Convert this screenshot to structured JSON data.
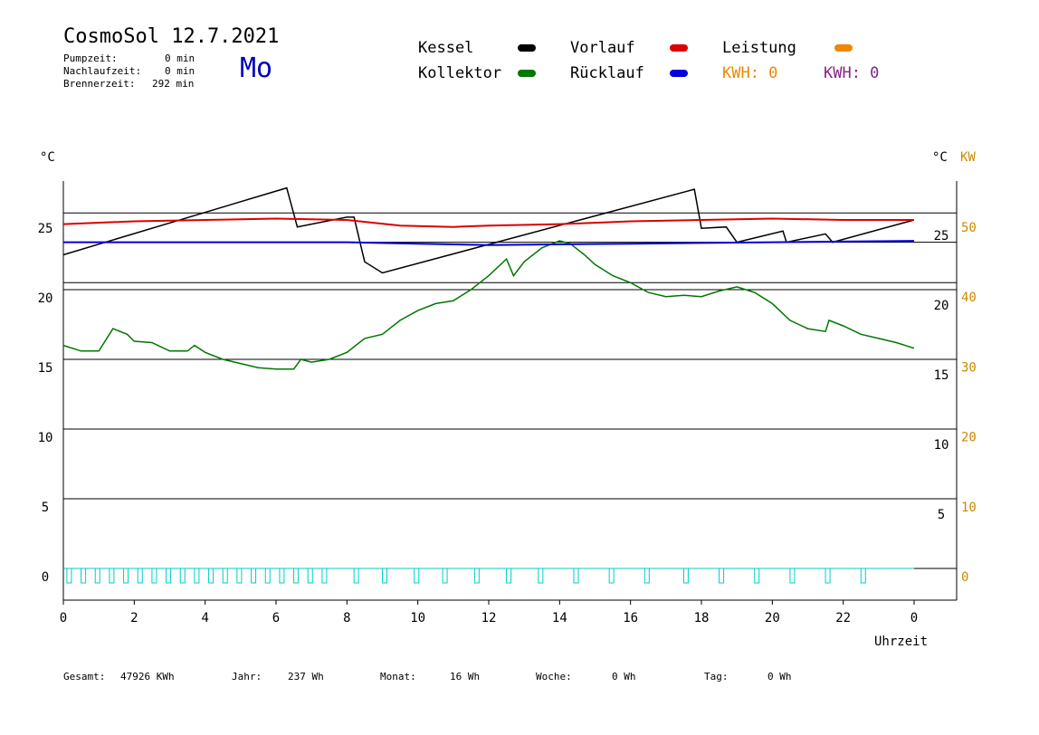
{
  "header": {
    "title": "CosmoSol 12.7.2021",
    "day": "Mo",
    "stats": [
      {
        "label": "Pumpzeit:",
        "value": "0 min"
      },
      {
        "label": "Nachlaufzeit:",
        "value": "0 min"
      },
      {
        "label": "Brennerzeit:",
        "value": "292 min"
      }
    ]
  },
  "legend": {
    "kessel": "Kessel",
    "kollektor": "Kollektor",
    "vorlauf": "Vorlauf",
    "ruecklauf": "Rücklauf",
    "leistung": "Leistung",
    "kwh1": "KWH: 0",
    "kwh2": "KWH: 0",
    "colors": {
      "kessel": "#000000",
      "kollektor": "#007700",
      "vorlauf": "#dd0000",
      "ruecklauf": "#0000dd",
      "leistung": "#ee8800",
      "kwh2": "#882288",
      "pump": "#00cccc"
    }
  },
  "axes": {
    "left_unit": "°C",
    "right_unit": "°C",
    "right_unit2": "KW",
    "xlabel": "Uhrzeit"
  },
  "footer": {
    "gesamt_label": "Gesamt:",
    "gesamt_value": "47926 KWh",
    "jahr_label": "Jahr:",
    "jahr_value": "237 Wh",
    "monat_label": "Monat:",
    "monat_value": "16 Wh",
    "woche_label": "Woche:",
    "woche_value": "0 Wh",
    "tag_label": "Tag:",
    "tag_value": "0 Wh"
  },
  "chart_data": {
    "type": "line",
    "xlabel": "Uhrzeit",
    "ylabel": "°C",
    "xlim": [
      0,
      24
    ],
    "ylim": [
      -2,
      28
    ],
    "y2lim": [
      0,
      55
    ],
    "grid": true,
    "x_ticks": [
      "0",
      "2",
      "4",
      "6",
      "8",
      "10",
      "12",
      "14",
      "16",
      "18",
      "20",
      "22",
      "0"
    ],
    "y_ticks_left": [
      "0",
      "5",
      "10",
      "15",
      "20",
      "25"
    ],
    "y_ticks_right": [
      "5",
      "10",
      "15",
      "20",
      "25"
    ],
    "y2_ticks": [
      "0",
      "10",
      "20",
      "30",
      "40",
      "50"
    ],
    "ref_lines": [
      25.5,
      23.4,
      20.5
    ],
    "series": [
      {
        "name": "Kessel",
        "key": "kessel",
        "points": [
          [
            0,
            22.5
          ],
          [
            6.3,
            27.3
          ],
          [
            6.6,
            24.5
          ],
          [
            8.0,
            25.2
          ],
          [
            8.2,
            25.2
          ],
          [
            8.5,
            22.0
          ],
          [
            9.0,
            21.2
          ],
          [
            17.8,
            27.2
          ],
          [
            18.0,
            24.4
          ],
          [
            18.7,
            24.5
          ],
          [
            19.0,
            23.4
          ],
          [
            20.3,
            24.2
          ],
          [
            20.4,
            23.4
          ],
          [
            21.5,
            24.0
          ],
          [
            21.7,
            23.4
          ],
          [
            24.0,
            25.0
          ]
        ]
      },
      {
        "name": "Kollektor",
        "key": "kollektor",
        "points": [
          [
            0,
            16.0
          ],
          [
            0.5,
            15.6
          ],
          [
            1.0,
            15.6
          ],
          [
            1.4,
            17.2
          ],
          [
            1.8,
            16.8
          ],
          [
            2.0,
            16.3
          ],
          [
            2.5,
            16.2
          ],
          [
            3.0,
            15.6
          ],
          [
            3.5,
            15.6
          ],
          [
            3.7,
            16.0
          ],
          [
            4.0,
            15.5
          ],
          [
            4.5,
            15.0
          ],
          [
            5.0,
            14.7
          ],
          [
            5.5,
            14.4
          ],
          [
            6.0,
            14.3
          ],
          [
            6.5,
            14.3
          ],
          [
            6.7,
            15.0
          ],
          [
            7.0,
            14.8
          ],
          [
            7.5,
            15.0
          ],
          [
            8.0,
            15.5
          ],
          [
            8.5,
            16.5
          ],
          [
            9.0,
            16.8
          ],
          [
            9.5,
            17.8
          ],
          [
            10.0,
            18.5
          ],
          [
            10.5,
            19.0
          ],
          [
            11.0,
            19.2
          ],
          [
            11.5,
            20.0
          ],
          [
            12.0,
            21.0
          ],
          [
            12.5,
            22.2
          ],
          [
            12.7,
            21.0
          ],
          [
            13.0,
            22.0
          ],
          [
            13.5,
            23.0
          ],
          [
            14.0,
            23.5
          ],
          [
            14.3,
            23.3
          ],
          [
            14.7,
            22.5
          ],
          [
            15.0,
            21.8
          ],
          [
            15.5,
            21.0
          ],
          [
            16.0,
            20.5
          ],
          [
            16.5,
            19.8
          ],
          [
            17.0,
            19.5
          ],
          [
            17.5,
            19.6
          ],
          [
            18.0,
            19.5
          ],
          [
            18.5,
            19.9
          ],
          [
            19.0,
            20.2
          ],
          [
            19.5,
            19.8
          ],
          [
            20.0,
            19.0
          ],
          [
            20.5,
            17.8
          ],
          [
            21.0,
            17.2
          ],
          [
            21.5,
            17.0
          ],
          [
            21.6,
            17.8
          ],
          [
            22.0,
            17.4
          ],
          [
            22.5,
            16.8
          ],
          [
            23.0,
            16.5
          ],
          [
            23.5,
            16.2
          ],
          [
            24.0,
            15.8
          ]
        ]
      },
      {
        "name": "Vorlauf",
        "key": "vorlauf",
        "points": [
          [
            0,
            24.7
          ],
          [
            2,
            24.9
          ],
          [
            4,
            25.0
          ],
          [
            6,
            25.1
          ],
          [
            8,
            25.0
          ],
          [
            9.5,
            24.6
          ],
          [
            11,
            24.5
          ],
          [
            12,
            24.6
          ],
          [
            14,
            24.7
          ],
          [
            16,
            24.9
          ],
          [
            18,
            25.0
          ],
          [
            20,
            25.1
          ],
          [
            22,
            25.0
          ],
          [
            24,
            25.0
          ]
        ]
      },
      {
        "name": "Rücklauf",
        "key": "ruecklauf",
        "points": [
          [
            0,
            23.4
          ],
          [
            8,
            23.4
          ],
          [
            10,
            23.3
          ],
          [
            12,
            23.2
          ],
          [
            16,
            23.3
          ],
          [
            20,
            23.4
          ],
          [
            24,
            23.5
          ]
        ]
      }
    ],
    "pump_pulses_hours": [
      0.1,
      0.5,
      0.9,
      1.3,
      1.7,
      2.1,
      2.5,
      2.9,
      3.3,
      3.7,
      4.1,
      4.5,
      4.9,
      5.3,
      5.7,
      6.1,
      6.5,
      6.9,
      7.3,
      8.2,
      9.0,
      9.9,
      10.7,
      11.6,
      12.5,
      13.4,
      14.4,
      15.4,
      16.4,
      17.5,
      18.5,
      19.5,
      20.5,
      21.5,
      22.5
    ]
  }
}
